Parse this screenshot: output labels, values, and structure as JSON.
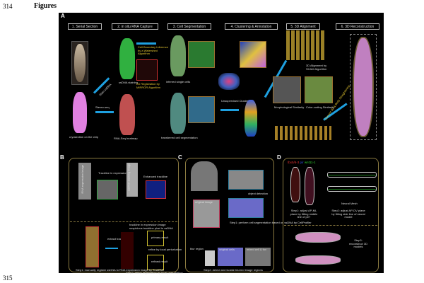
{
  "page": {
    "line_top": "314",
    "heading": "Figures",
    "line_bottom": "315"
  },
  "panelA": {
    "label": "A",
    "steps": [
      "1. Serial Section",
      "2. in situ RNA Capture",
      "3. Cell Segmentation",
      "4. Clustering & Annotation",
      "5. 3D Alignment",
      "6. 3D Reconstruction"
    ],
    "texts": {
      "cryosection": "cryosection on the chip",
      "stain": "Stain ssDNA",
      "stereo": "Stereo-seq",
      "ssdna": "ssDNA staining",
      "rnaseq": "RNA-Seq heatmap",
      "watershed": "Cell Boundary Inference by a Watershed Algorithm",
      "mirror": "2D Registration by MIRROR Algorithm",
      "inferred": "inferred single cells",
      "transferred": "transferred cell segmentation",
      "unsupervised": "Unsupervised Clustering",
      "scam": "3D Alignment by SCAM Algorithm",
      "morph": "Morphological Similarity",
      "color": "Color-coding Similarity",
      "convert": "Convert 3D & Body Straightening"
    }
  },
  "panelB": {
    "label": "B",
    "texts": {
      "rna_img": "RNA expression image",
      "trackline": "Trackline in expression image",
      "ssdna_img": "ssDNA staining image",
      "enhanced": "Enhanced trackline",
      "legend1": "trackline in expression image",
      "legend2": "suspicious trackline pixel in ssDNA",
      "extract": "extract tracklines",
      "primary": "primary result",
      "refine": "refine by local perturbation",
      "refined": "refined result",
      "step1": "Step1: manually register ssDNA to RNA expression image by TrakEM2",
      "step2": "Step2: refine registration by local perturbation"
    }
  },
  "panelC": {
    "label": "C",
    "texts": {
      "detect": "object detection",
      "original": "original image",
      "step1": "Step1: perform cell segmentation based on ssDNA by CellProfiler",
      "blur": "blur region",
      "cells": "original cells",
      "mixed": "mixed cell & fov",
      "step2": "Step2: detect and isolate blurred image regions"
    }
  },
  "panelD": {
    "label": "D",
    "genes": [
      "tbx5/6-3",
      "pir",
      "wnt11-1"
    ],
    "gene_colors": [
      "#e03030",
      "#3050e0",
      "#30d030"
    ],
    "texts": {
      "step1": "Step1: adjust AP-ML plane by fitting middle line of pir?",
      "neural": "Neural Mesh",
      "step2": "Step2: adjust AP-DV plane by fitting side line of neural model",
      "step3": "Step3: reconstruct 3D models"
    }
  }
}
